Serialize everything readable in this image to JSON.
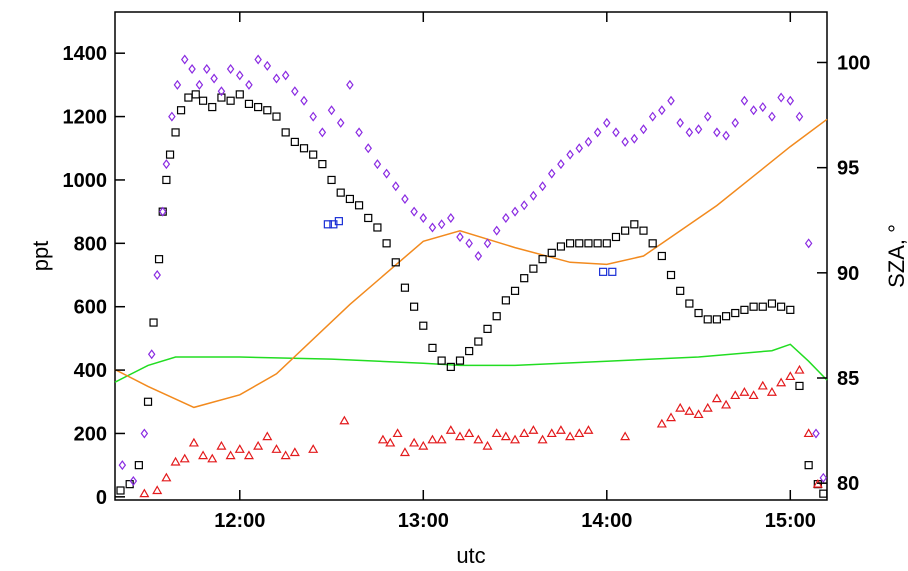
{
  "chart_data": {
    "type": "scatter",
    "xlabel": "utc",
    "ylabel": "ppt",
    "y2label": "SZA, °",
    "xlim": [
      11.32,
      15.2
    ],
    "ylim": [
      -10,
      1530
    ],
    "y2lim": [
      79.2,
      102.4
    ],
    "x_ticks": [
      {
        "value": 12.0,
        "label": "12:00"
      },
      {
        "value": 13.0,
        "label": "13:00"
      },
      {
        "value": 14.0,
        "label": "14:00"
      },
      {
        "value": 15.0,
        "label": "15:00"
      }
    ],
    "y_ticks": [
      0,
      200,
      400,
      600,
      800,
      1000,
      1200,
      1400
    ],
    "y2_ticks": [
      80,
      85,
      90,
      95,
      100
    ],
    "colors": {
      "black_squares": "#000000",
      "blue_squares": "#1a2fd6",
      "purple_diamonds": "#8a2be2",
      "red_triangles": "#e31a1c",
      "green_line": "#22dd22",
      "orange_line": "#f28a1e"
    },
    "series": [
      {
        "marker": "square",
        "color": "#000000",
        "axis": "left",
        "x": [
          11.35,
          11.4,
          11.45,
          11.5,
          11.53,
          11.56,
          11.58,
          11.6,
          11.62,
          11.65,
          11.68,
          11.72,
          11.76,
          11.8,
          11.85,
          11.9,
          11.95,
          12.0,
          12.05,
          12.1,
          12.15,
          12.2,
          12.25,
          12.3,
          12.35,
          12.4,
          12.45,
          12.5,
          12.55,
          12.6,
          12.65,
          12.7,
          12.75,
          12.8,
          12.85,
          12.9,
          12.95,
          13.0,
          13.05,
          13.1,
          13.15,
          13.2,
          13.25,
          13.3,
          13.35,
          13.4,
          13.45,
          13.5,
          13.55,
          13.6,
          13.65,
          13.7,
          13.75,
          13.8,
          13.85,
          13.9,
          13.95,
          14.0,
          14.05,
          14.1,
          14.15,
          14.2,
          14.25,
          14.3,
          14.35,
          14.4,
          14.45,
          14.5,
          14.55,
          14.6,
          14.65,
          14.7,
          14.75,
          14.8,
          14.85,
          14.9,
          14.95,
          15.0,
          15.05,
          15.1,
          15.15,
          15.18
        ],
        "y": [
          20,
          40,
          100,
          300,
          550,
          750,
          900,
          1000,
          1080,
          1150,
          1220,
          1260,
          1270,
          1250,
          1230,
          1260,
          1250,
          1270,
          1240,
          1230,
          1220,
          1200,
          1150,
          1120,
          1100,
          1080,
          1050,
          1000,
          960,
          940,
          920,
          880,
          850,
          800,
          740,
          660,
          600,
          540,
          470,
          430,
          410,
          430,
          460,
          490,
          530,
          570,
          620,
          650,
          690,
          720,
          750,
          770,
          790,
          800,
          800,
          800,
          800,
          800,
          820,
          840,
          860,
          840,
          800,
          760,
          700,
          650,
          610,
          580,
          560,
          560,
          570,
          580,
          590,
          600,
          600,
          610,
          600,
          590,
          350,
          100,
          40,
          10
        ]
      },
      {
        "marker": "square",
        "color": "#1a2fd6",
        "axis": "left",
        "x": [
          12.48,
          12.51,
          12.54,
          13.98,
          14.03
        ],
        "y": [
          860,
          860,
          870,
          710,
          710
        ]
      },
      {
        "marker": "diamond",
        "color": "#8a2be2",
        "axis": "left",
        "x": [
          11.36,
          11.42,
          11.48,
          11.52,
          11.55,
          11.58,
          11.6,
          11.63,
          11.66,
          11.7,
          11.74,
          11.78,
          11.82,
          11.86,
          11.9,
          11.95,
          12.0,
          12.05,
          12.1,
          12.15,
          12.2,
          12.25,
          12.3,
          12.35,
          12.4,
          12.45,
          12.5,
          12.55,
          12.6,
          12.65,
          12.7,
          12.75,
          12.8,
          12.85,
          12.9,
          12.95,
          13.0,
          13.05,
          13.1,
          13.15,
          13.2,
          13.25,
          13.3,
          13.35,
          13.4,
          13.45,
          13.5,
          13.55,
          13.6,
          13.65,
          13.7,
          13.75,
          13.8,
          13.85,
          13.9,
          13.95,
          14.0,
          14.05,
          14.1,
          14.15,
          14.2,
          14.25,
          14.3,
          14.35,
          14.4,
          14.45,
          14.5,
          14.55,
          14.6,
          14.65,
          14.7,
          14.75,
          14.8,
          14.85,
          14.9,
          14.95,
          15.0,
          15.05,
          15.1,
          15.14,
          15.18
        ],
        "y": [
          100,
          50,
          200,
          450,
          700,
          900,
          1050,
          1200,
          1300,
          1380,
          1350,
          1300,
          1350,
          1320,
          1280,
          1350,
          1330,
          1300,
          1380,
          1360,
          1320,
          1330,
          1280,
          1250,
          1200,
          1150,
          1220,
          1180,
          1300,
          1150,
          1100,
          1050,
          1020,
          980,
          940,
          900,
          880,
          850,
          860,
          880,
          820,
          800,
          760,
          800,
          840,
          880,
          900,
          920,
          950,
          980,
          1020,
          1050,
          1080,
          1100,
          1120,
          1150,
          1180,
          1150,
          1120,
          1130,
          1160,
          1200,
          1220,
          1250,
          1180,
          1150,
          1160,
          1200,
          1150,
          1140,
          1180,
          1250,
          1220,
          1230,
          1200,
          1260,
          1250,
          1200,
          800,
          200,
          60
        ]
      },
      {
        "marker": "triangle",
        "color": "#e31a1c",
        "axis": "left",
        "x": [
          11.48,
          11.55,
          11.6,
          11.65,
          11.7,
          11.75,
          11.8,
          11.85,
          11.9,
          11.95,
          12.0,
          12.05,
          12.1,
          12.15,
          12.2,
          12.25,
          12.3,
          12.4,
          12.57,
          12.78,
          12.82,
          12.86,
          12.9,
          12.95,
          13.0,
          13.05,
          13.1,
          13.15,
          13.2,
          13.25,
          13.3,
          13.35,
          13.4,
          13.45,
          13.5,
          13.55,
          13.6,
          13.65,
          13.7,
          13.75,
          13.8,
          13.85,
          13.9,
          14.1,
          14.3,
          14.35,
          14.4,
          14.45,
          14.5,
          14.55,
          14.6,
          14.65,
          14.7,
          14.75,
          14.8,
          14.85,
          14.9,
          14.95,
          15.0,
          15.05,
          15.1,
          15.15
        ],
        "y": [
          10,
          20,
          60,
          110,
          120,
          170,
          130,
          120,
          160,
          130,
          150,
          130,
          160,
          190,
          150,
          130,
          140,
          150,
          240,
          180,
          170,
          200,
          140,
          170,
          160,
          180,
          180,
          210,
          190,
          200,
          180,
          160,
          200,
          190,
          180,
          200,
          210,
          180,
          200,
          210,
          190,
          200,
          210,
          190,
          230,
          250,
          280,
          270,
          260,
          280,
          310,
          290,
          320,
          330,
          320,
          350,
          330,
          360,
          380,
          400,
          200,
          40
        ]
      }
    ],
    "lines": [
      {
        "color": "#22dd22",
        "axis": "right",
        "x": [
          11.32,
          11.5,
          11.65,
          11.7,
          12.0,
          12.5,
          13.0,
          13.2,
          13.5,
          14.0,
          14.5,
          14.9,
          15.0,
          15.1,
          15.2
        ],
        "y": [
          84.8,
          85.6,
          86.0,
          86.0,
          86.0,
          85.9,
          85.7,
          85.6,
          85.6,
          85.8,
          86.0,
          86.3,
          86.6,
          85.8,
          84.9
        ]
      },
      {
        "color": "#f28a1e",
        "axis": "right",
        "x": [
          11.32,
          11.5,
          11.75,
          12.0,
          12.2,
          12.6,
          13.0,
          13.2,
          13.5,
          13.8,
          14.0,
          14.2,
          14.35,
          14.6,
          14.8,
          15.0,
          15.2
        ],
        "y": [
          85.4,
          84.6,
          83.6,
          84.2,
          85.2,
          88.5,
          91.5,
          92.0,
          91.2,
          90.5,
          90.4,
          90.8,
          91.7,
          93.2,
          94.6,
          96.0,
          97.3
        ]
      }
    ]
  }
}
